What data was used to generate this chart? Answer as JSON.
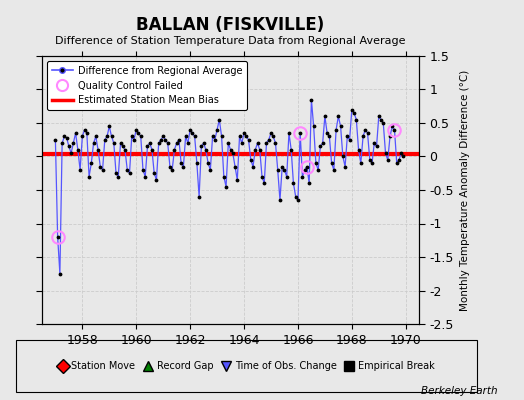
{
  "title": "BALLAN (FISKVILLE)",
  "subtitle": "Difference of Station Temperature Data from Regional Average",
  "ylabel": "Monthly Temperature Anomaly Difference (°C)",
  "credit": "Berkeley Earth",
  "xlim": [
    1956.5,
    1970.5
  ],
  "ylim": [
    -2.5,
    1.5
  ],
  "yticks": [
    -2.5,
    -2.0,
    -1.5,
    -1.0,
    -0.5,
    0.0,
    0.5,
    1.0,
    1.5
  ],
  "ytick_labels": [
    "-2.5",
    "-2",
    "-1.5",
    "-1",
    "-0.5",
    "0",
    "0.5",
    "1",
    "1.5"
  ],
  "xticks": [
    1958,
    1960,
    1962,
    1964,
    1966,
    1968,
    1970
  ],
  "mean_bias": 0.03,
  "bg_color": "#e8e8e8",
  "plot_bg": "#e8e8e8",
  "line_color": "#5555ff",
  "bias_color": "#ff0000",
  "qc_color": "#ff88ff",
  "grid_color": "#cccccc",
  "raw_data": [
    [
      1957.0,
      0.25
    ],
    [
      1957.083,
      -1.2
    ],
    [
      1957.167,
      -1.75
    ],
    [
      1957.25,
      0.2
    ],
    [
      1957.333,
      0.3
    ],
    [
      1957.417,
      0.28
    ],
    [
      1957.5,
      0.15
    ],
    [
      1957.583,
      0.05
    ],
    [
      1957.667,
      0.2
    ],
    [
      1957.75,
      0.35
    ],
    [
      1957.833,
      0.1
    ],
    [
      1957.917,
      -0.2
    ],
    [
      1958.0,
      0.3
    ],
    [
      1958.083,
      0.4
    ],
    [
      1958.167,
      0.35
    ],
    [
      1958.25,
      -0.3
    ],
    [
      1958.333,
      -0.1
    ],
    [
      1958.417,
      0.2
    ],
    [
      1958.5,
      0.3
    ],
    [
      1958.583,
      0.1
    ],
    [
      1958.667,
      -0.15
    ],
    [
      1958.75,
      -0.2
    ],
    [
      1958.833,
      0.25
    ],
    [
      1958.917,
      0.3
    ],
    [
      1959.0,
      0.45
    ],
    [
      1959.083,
      0.3
    ],
    [
      1959.167,
      0.2
    ],
    [
      1959.25,
      -0.25
    ],
    [
      1959.333,
      -0.3
    ],
    [
      1959.417,
      0.2
    ],
    [
      1959.5,
      0.15
    ],
    [
      1959.583,
      0.1
    ],
    [
      1959.667,
      -0.2
    ],
    [
      1959.75,
      -0.25
    ],
    [
      1959.833,
      0.3
    ],
    [
      1959.917,
      0.25
    ],
    [
      1960.0,
      0.4
    ],
    [
      1960.083,
      0.35
    ],
    [
      1960.167,
      0.3
    ],
    [
      1960.25,
      -0.2
    ],
    [
      1960.333,
      -0.3
    ],
    [
      1960.417,
      0.15
    ],
    [
      1960.5,
      0.2
    ],
    [
      1960.583,
      0.1
    ],
    [
      1960.667,
      -0.25
    ],
    [
      1960.75,
      -0.35
    ],
    [
      1960.833,
      0.2
    ],
    [
      1960.917,
      0.25
    ],
    [
      1961.0,
      0.3
    ],
    [
      1961.083,
      0.25
    ],
    [
      1961.167,
      0.2
    ],
    [
      1961.25,
      -0.15
    ],
    [
      1961.333,
      -0.2
    ],
    [
      1961.417,
      0.1
    ],
    [
      1961.5,
      0.2
    ],
    [
      1961.583,
      0.25
    ],
    [
      1961.667,
      -0.1
    ],
    [
      1961.75,
      -0.15
    ],
    [
      1961.833,
      0.3
    ],
    [
      1961.917,
      0.2
    ],
    [
      1962.0,
      0.4
    ],
    [
      1962.083,
      0.35
    ],
    [
      1962.167,
      0.3
    ],
    [
      1962.25,
      -0.1
    ],
    [
      1962.333,
      -0.6
    ],
    [
      1962.417,
      0.15
    ],
    [
      1962.5,
      0.2
    ],
    [
      1962.583,
      0.1
    ],
    [
      1962.667,
      -0.1
    ],
    [
      1962.75,
      -0.2
    ],
    [
      1962.833,
      0.3
    ],
    [
      1962.917,
      0.25
    ],
    [
      1963.0,
      0.4
    ],
    [
      1963.083,
      0.55
    ],
    [
      1963.167,
      0.3
    ],
    [
      1963.25,
      -0.3
    ],
    [
      1963.333,
      -0.45
    ],
    [
      1963.417,
      0.2
    ],
    [
      1963.5,
      0.1
    ],
    [
      1963.583,
      0.05
    ],
    [
      1963.667,
      -0.15
    ],
    [
      1963.75,
      -0.35
    ],
    [
      1963.833,
      0.3
    ],
    [
      1963.917,
      0.2
    ],
    [
      1964.0,
      0.35
    ],
    [
      1964.083,
      0.3
    ],
    [
      1964.167,
      0.25
    ],
    [
      1964.25,
      -0.05
    ],
    [
      1964.333,
      -0.15
    ],
    [
      1964.417,
      0.1
    ],
    [
      1964.5,
      0.2
    ],
    [
      1964.583,
      0.1
    ],
    [
      1964.667,
      -0.3
    ],
    [
      1964.75,
      -0.4
    ],
    [
      1964.833,
      0.2
    ],
    [
      1964.917,
      0.25
    ],
    [
      1965.0,
      0.35
    ],
    [
      1965.083,
      0.3
    ],
    [
      1965.167,
      0.2
    ],
    [
      1965.25,
      -0.2
    ],
    [
      1965.333,
      -0.65
    ],
    [
      1965.417,
      -0.15
    ],
    [
      1965.5,
      -0.2
    ],
    [
      1965.583,
      -0.3
    ],
    [
      1965.667,
      0.35
    ],
    [
      1965.75,
      0.1
    ],
    [
      1965.833,
      -0.4
    ],
    [
      1965.917,
      -0.6
    ],
    [
      1966.0,
      -0.65
    ],
    [
      1966.083,
      0.35
    ],
    [
      1966.167,
      -0.3
    ],
    [
      1966.25,
      -0.2
    ],
    [
      1966.333,
      -0.15
    ],
    [
      1966.417,
      -0.4
    ],
    [
      1966.5,
      0.85
    ],
    [
      1966.583,
      0.45
    ],
    [
      1966.667,
      -0.1
    ],
    [
      1966.75,
      -0.2
    ],
    [
      1966.833,
      0.15
    ],
    [
      1966.917,
      0.2
    ],
    [
      1967.0,
      0.6
    ],
    [
      1967.083,
      0.35
    ],
    [
      1967.167,
      0.3
    ],
    [
      1967.25,
      -0.1
    ],
    [
      1967.333,
      -0.2
    ],
    [
      1967.417,
      0.4
    ],
    [
      1967.5,
      0.6
    ],
    [
      1967.583,
      0.45
    ],
    [
      1967.667,
      0.0
    ],
    [
      1967.75,
      -0.15
    ],
    [
      1967.833,
      0.3
    ],
    [
      1967.917,
      0.25
    ],
    [
      1968.0,
      0.7
    ],
    [
      1968.083,
      0.65
    ],
    [
      1968.167,
      0.55
    ],
    [
      1968.25,
      0.1
    ],
    [
      1968.333,
      -0.1
    ],
    [
      1968.417,
      0.3
    ],
    [
      1968.5,
      0.4
    ],
    [
      1968.583,
      0.35
    ],
    [
      1968.667,
      -0.05
    ],
    [
      1968.75,
      -0.1
    ],
    [
      1968.833,
      0.2
    ],
    [
      1968.917,
      0.15
    ],
    [
      1969.0,
      0.6
    ],
    [
      1969.083,
      0.55
    ],
    [
      1969.167,
      0.5
    ],
    [
      1969.25,
      0.05
    ],
    [
      1969.333,
      -0.05
    ],
    [
      1969.417,
      0.3
    ],
    [
      1969.5,
      0.45
    ],
    [
      1969.583,
      0.4
    ],
    [
      1969.667,
      -0.1
    ],
    [
      1969.75,
      -0.05
    ],
    [
      1969.833,
      0.05
    ],
    [
      1969.917,
      0.0
    ]
  ],
  "qc_points": [
    [
      1957.083,
      -1.2
    ],
    [
      1966.083,
      0.35
    ],
    [
      1966.333,
      -0.15
    ],
    [
      1969.583,
      0.4
    ]
  ]
}
